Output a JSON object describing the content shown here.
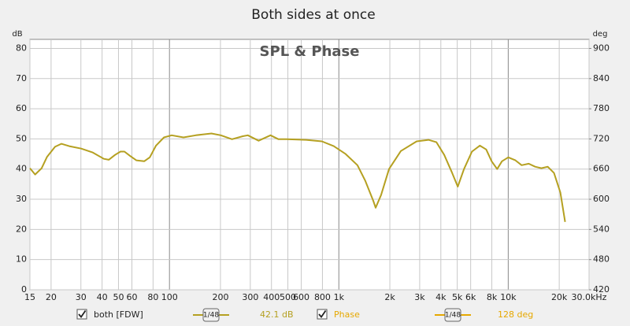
{
  "chart_data": {
    "type": "line",
    "title": "Both sides at once",
    "plot_title": "SPL & Phase",
    "y_unit": "dB",
    "y2_unit": "deg",
    "xscale": "log",
    "grid": true,
    "xlim": [
      15,
      30000
    ],
    "ylim": [
      0,
      83
    ],
    "y2lim": [
      420,
      918
    ],
    "xticks": [
      15,
      20,
      30,
      40,
      50,
      60,
      80,
      100,
      200,
      300,
      400,
      500,
      600,
      800,
      {
        "value": 1000,
        "label": "1k"
      },
      {
        "value": 2000,
        "label": "2k"
      },
      {
        "value": 3000,
        "label": "3k"
      },
      {
        "value": 4000,
        "label": "4k"
      },
      {
        "value": 5000,
        "label": "5k"
      },
      {
        "value": 6000,
        "label": "6k"
      },
      {
        "value": 8000,
        "label": "8k"
      },
      {
        "value": 10000,
        "label": "10k"
      },
      {
        "value": 20000,
        "label": "20k"
      },
      {
        "value": 30000,
        "label": "30.0kHz"
      }
    ],
    "yticks": [
      0,
      10,
      20,
      30,
      40,
      50,
      60,
      70,
      80
    ],
    "y2ticks": [
      420,
      480,
      540,
      600,
      660,
      720,
      780,
      840,
      900
    ],
    "series": [
      {
        "name": "both [FDW]",
        "color": "#b5a021",
        "smoothing": "1/48",
        "reading": "42.1 dB",
        "checked": true,
        "x": [
          15,
          16.1,
          17.6,
          18.9,
          21.1,
          23,
          25.6,
          30.1,
          35.3,
          41,
          43.8,
          47.7,
          51.4,
          54.2,
          58.5,
          63.7,
          70.9,
          76.5,
          83.3,
          92.8,
          103,
          121,
          143,
          177,
          201,
          234,
          271,
          290,
          336,
          395,
          440,
          490,
          641,
          794,
          933,
          1096,
          1288,
          1433,
          1596,
          1648,
          1776,
          1977,
          2323,
          2879,
          3382,
          3767,
          4191,
          4667,
          5036,
          5483,
          6106,
          6797,
          7408,
          7980,
          8605,
          9181,
          10000,
          11020,
          12000,
          13210,
          14410,
          15690,
          17100,
          18630,
          20320,
          21670
        ],
        "values": [
          40.3,
          38.2,
          40.3,
          44.0,
          47.4,
          48.4,
          47.6,
          46.8,
          45.5,
          43.4,
          43.1,
          44.7,
          45.8,
          45.8,
          44.4,
          42.9,
          42.6,
          43.9,
          47.8,
          50.5,
          51.2,
          50.5,
          51.2,
          51.8,
          51.2,
          49.9,
          50.9,
          51.2,
          49.4,
          51.2,
          49.9,
          49.9,
          49.7,
          49.2,
          47.6,
          45.0,
          41.3,
          36.1,
          29.5,
          27.2,
          31.4,
          40.0,
          46.0,
          49.2,
          49.7,
          48.9,
          44.7,
          38.7,
          34.2,
          40.0,
          45.8,
          47.8,
          46.5,
          42.6,
          40.0,
          42.6,
          43.9,
          42.9,
          41.3,
          41.8,
          40.8,
          40.3,
          40.8,
          38.7,
          32.2,
          22.5
        ]
      }
    ],
    "phase": {
      "name": "Phase",
      "color": "#e6a800",
      "smoothing": "1/48",
      "reading": "128 deg",
      "checked": true
    }
  }
}
